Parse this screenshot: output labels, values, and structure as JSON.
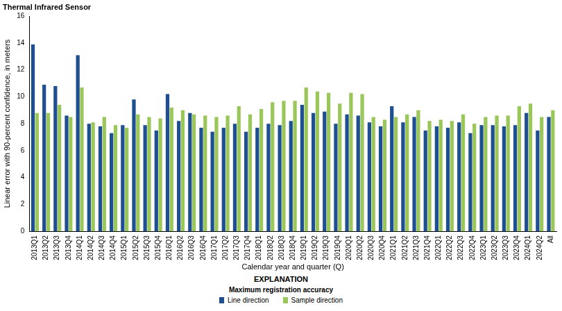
{
  "chart_data": {
    "type": "bar",
    "title": "Thermal Infrared Sensor",
    "x_label": "Calendar year and quarter (Q)",
    "y_label": "Linear error with 90-percent confidence, in meters",
    "legend_title": "EXPLANATION",
    "legend_subtitle": "Maximum registration accuracy",
    "categories": [
      "2013Q1",
      "2013Q2",
      "2013Q3",
      "2013Q4",
      "2014Q1",
      "2014Q2",
      "2014Q3",
      "2014Q4",
      "2015Q1",
      "2015Q2",
      "2015Q3",
      "2015Q4",
      "2016Q1",
      "2016Q2",
      "2016Q3",
      "2016Q4",
      "2017Q1",
      "2017Q2",
      "2017Q3",
      "2017Q4",
      "2018Q1",
      "2018Q2",
      "2018Q3",
      "2018Q4",
      "2019Q1",
      "2019Q2",
      "2019Q3",
      "2019Q4",
      "2020Q1",
      "2020Q2",
      "2020Q3",
      "2020Q4",
      "2021Q1",
      "2021Q2",
      "2021Q3",
      "2021Q4",
      "2022Q1",
      "2022Q2",
      "2022Q3",
      "2022Q4",
      "2023Q1",
      "2023Q2",
      "2023Q3",
      "2023Q4",
      "2024Q1",
      "2024Q2",
      "All"
    ],
    "series": [
      {
        "name": "Line direction",
        "color": "#1d4f91",
        "values": [
          13.9,
          10.9,
          10.8,
          8.6,
          13.1,
          8.0,
          7.8,
          7.3,
          7.9,
          9.8,
          7.9,
          7.5,
          10.2,
          8.2,
          8.8,
          7.7,
          7.4,
          7.7,
          8.0,
          7.4,
          7.7,
          8.0,
          7.9,
          8.2,
          9.4,
          8.8,
          8.9,
          8.0,
          8.7,
          8.6,
          8.1,
          7.8,
          9.3,
          8.1,
          8.5,
          7.5,
          7.8,
          7.7,
          8.1,
          7.3,
          7.9,
          7.9,
          7.8,
          7.9,
          8.8,
          7.5,
          8.5
        ]
      },
      {
        "name": "Sample direction",
        "color": "#9bc65a",
        "values": [
          8.8,
          8.8,
          9.4,
          8.5,
          10.7,
          8.1,
          8.5,
          7.9,
          7.7,
          8.7,
          8.5,
          8.4,
          9.2,
          9.0,
          8.7,
          8.6,
          8.5,
          8.6,
          9.3,
          8.7,
          9.1,
          9.6,
          9.7,
          9.7,
          10.7,
          10.4,
          10.3,
          9.5,
          10.3,
          10.2,
          8.5,
          8.3,
          8.5,
          8.7,
          9.0,
          8.2,
          8.3,
          8.2,
          8.7,
          8.0,
          8.5,
          8.6,
          8.6,
          9.3,
          9.5,
          8.5,
          9.0
        ]
      }
    ],
    "ylim": [
      0,
      16
    ],
    "yticks": [
      0,
      2,
      4,
      6,
      8,
      10,
      12,
      14,
      16
    ],
    "grid": false,
    "legend": "bottom"
  }
}
